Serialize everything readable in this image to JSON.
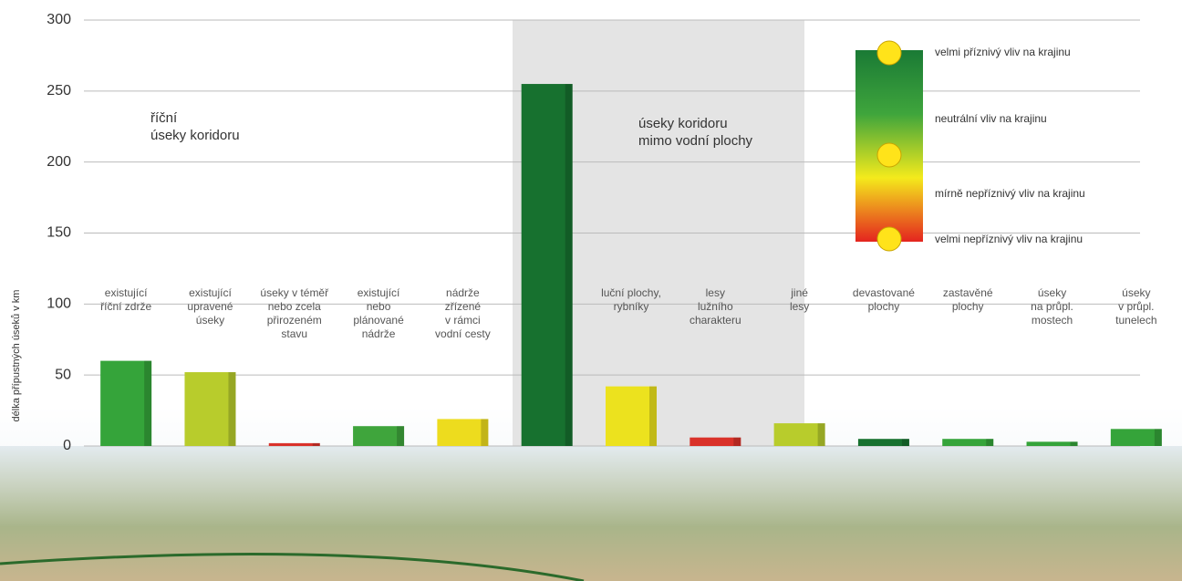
{
  "chart_data": {
    "type": "bar",
    "y_label": "délka přípustných úseků v km",
    "categories": [
      "existující\nříční zdrže",
      "existující\nupravené\núseky",
      "úseky v téměř\nnebo zcela\npřirozeném\nstavu",
      "existující\nnebo\nplánované\nnádrže",
      "nádrže\nzřízené\nv rámci\nvodní cesty",
      null,
      "luční plochy,\nrybníky",
      "lesy\nlužního\ncharakteru",
      "jiné\nlesy",
      "devastované\nplochy",
      "zastavěné\nplochy",
      "úseky\nna průpl.\nmostech",
      "úseky\nv průpl.\ntunelech"
    ],
    "values": [
      60,
      52,
      2,
      14,
      19,
      255,
      42,
      6,
      16,
      5,
      5,
      3,
      12
    ],
    "colors": [
      "#35a43a",
      "#b8cc2c",
      "#d9322a",
      "#3fa53c",
      "#eddc1e",
      "#17712f",
      "#ece21e",
      "#d9322a",
      "#b8cc2c",
      "#17712f",
      "#35a43a",
      "#35a43a",
      "#35a43a"
    ],
    "ylim": [
      0,
      300
    ],
    "yticks": [
      0,
      50,
      100,
      150,
      200,
      250,
      300
    ],
    "grid": true,
    "section_labels": [
      "říční\núseky koridoru",
      "úseky koridoru\nmimo vodní plochy"
    ],
    "color_scale": {
      "colors": [
        "#1a7a35",
        "#3fa53c",
        "#f4ea1c",
        "#e4241f"
      ],
      "labels": [
        "velmi příznivý vliv na krajinu",
        "neutrální vliv na krajinu",
        "mírně nepříznivý vliv na krajinu",
        "velmi nepříznivý vliv na krajinu"
      ]
    }
  }
}
